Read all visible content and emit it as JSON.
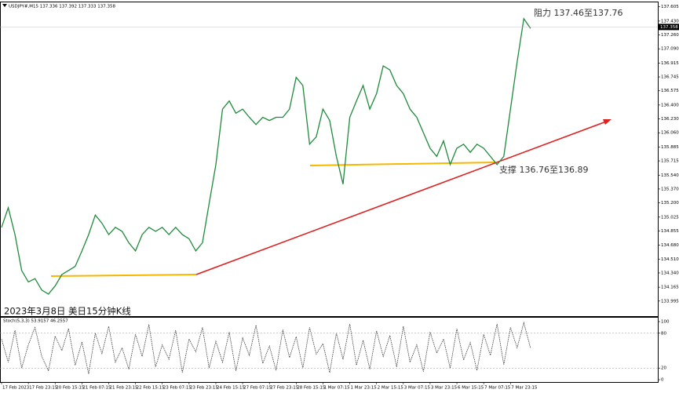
{
  "chart_data": [
    {
      "type": "line",
      "title": "USDJPY#,M15 137.336 137.392 137.333 137.358",
      "annotations": [
        "阻力 137.46至137.76",
        "支撑 136.76至136.89",
        "2023年3月8日 美日15分钟K线"
      ],
      "categories": [
        "17 Feb 2023",
        null,
        null,
        null,
        "17 Feb 23:15",
        null,
        null,
        null,
        "20 Feb 15:15",
        null,
        null,
        null,
        "21 Feb 07:15",
        null,
        null,
        null,
        "21 Feb 23:15",
        null,
        null,
        null,
        "22 Feb 15:15",
        null,
        null,
        null,
        "23 Feb 07:15",
        null,
        null,
        null,
        "23 Feb 23:15",
        null,
        null,
        null,
        "24 Feb 15:15",
        null,
        null,
        null,
        "27 Feb 07:15",
        null,
        null,
        null,
        "27 Feb 23:15",
        null,
        null,
        null,
        "28 Feb 15:15",
        null,
        null,
        null,
        "1 Mar 07:15",
        null,
        null,
        null,
        "1 Mar 23:15",
        null,
        null,
        null,
        "2 Mar 15:15",
        null,
        null,
        null,
        "3 Mar 07:15",
        null,
        null,
        null,
        "3 Mar 23:15",
        null,
        null,
        null,
        "6 Mar 15:15",
        null,
        null,
        null,
        "7 Mar 07:15",
        null,
        null,
        null,
        "7 Mar 23:15",
        null,
        null,
        null
      ],
      "series": [
        {
          "color": "#1f8a3c",
          "values": [
            134.9,
            135.14,
            134.81,
            134.37,
            134.23,
            134.27,
            134.13,
            134.08,
            134.18,
            134.32,
            134.37,
            134.42,
            134.61,
            134.81,
            135.05,
            134.95,
            134.81,
            134.9,
            134.85,
            134.71,
            134.61,
            134.81,
            134.9,
            134.85,
            134.9,
            134.81,
            134.9,
            134.81,
            134.76,
            134.61,
            134.71,
            135.19,
            135.67,
            136.35,
            136.45,
            136.3,
            136.35,
            136.25,
            136.16,
            136.25,
            136.21,
            136.25,
            136.25,
            136.35,
            136.74,
            136.64,
            135.92,
            136.01,
            136.35,
            136.21,
            135.77,
            135.43,
            136.25,
            136.45,
            136.64,
            136.35,
            136.54,
            136.88,
            136.83,
            136.64,
            136.54,
            136.35,
            136.25,
            136.06,
            135.87,
            135.77,
            135.96,
            135.67,
            135.87,
            135.92,
            135.82,
            135.92,
            135.87,
            135.77,
            135.67,
            135.77,
            136.35,
            136.93,
            137.46,
            137.34
          ]
        }
      ],
      "last_price": 137.358,
      "ylim": [
        133.81,
        137.66
      ],
      "yticks": [
        {
          "value": 137.605,
          "label": "137.605"
        },
        {
          "value": 137.43,
          "label": "137.430"
        },
        {
          "value": 137.26,
          "label": "137.260"
        },
        {
          "value": 137.09,
          "label": "137.090"
        },
        {
          "value": 136.915,
          "label": "136.915"
        },
        {
          "value": 136.745,
          "label": "136.745"
        },
        {
          "value": 136.575,
          "label": "136.575"
        },
        {
          "value": 136.4,
          "label": "136.400"
        },
        {
          "value": 136.23,
          "label": "136.230"
        },
        {
          "value": 136.06,
          "label": "136.060"
        },
        {
          "value": 135.885,
          "label": "135.885"
        },
        {
          "value": 135.715,
          "label": "135.715"
        },
        {
          "value": 135.54,
          "label": "135.540"
        },
        {
          "value": 135.37,
          "label": "135.370"
        },
        {
          "value": 135.2,
          "label": "135.200"
        },
        {
          "value": 135.025,
          "label": "135.025"
        },
        {
          "value": 134.855,
          "label": "134.855"
        },
        {
          "value": 134.68,
          "label": "134.680"
        },
        {
          "value": 134.51,
          "label": "134.510"
        },
        {
          "value": 134.34,
          "label": "134.340"
        },
        {
          "value": 134.165,
          "label": "134.165"
        },
        {
          "value": 133.995,
          "label": "133.995"
        }
      ]
    },
    {
      "type": "line",
      "title": "Stoch(5,3,3) 53.9157 46.2557",
      "series": [
        {
          "color": "#333333",
          "values": [
            70,
            30,
            85,
            20,
            60,
            90,
            40,
            15,
            75,
            50,
            88,
            25,
            65,
            10,
            80,
            45,
            92,
            30,
            55,
            18,
            78,
            40,
            95,
            22,
            60,
            35,
            85,
            12,
            70,
            48,
            90,
            20,
            66,
            30,
            82,
            15,
            72,
            42,
            94,
            28,
            58,
            16,
            86,
            38,
            74,
            20,
            90,
            44,
            62,
            12,
            80,
            35,
            96,
            25,
            68,
            18,
            84,
            40,
            76,
            22,
            92,
            30,
            60,
            14,
            82,
            46,
            70,
            20,
            88,
            34,
            64,
            16,
            78,
            42,
            96,
            26,
            90,
            55,
            98,
            54
          ]
        }
      ],
      "ylim": [
        -4,
        106.7
      ],
      "yticks": [
        0,
        20,
        80,
        100
      ],
      "grid": true
    }
  ]
}
